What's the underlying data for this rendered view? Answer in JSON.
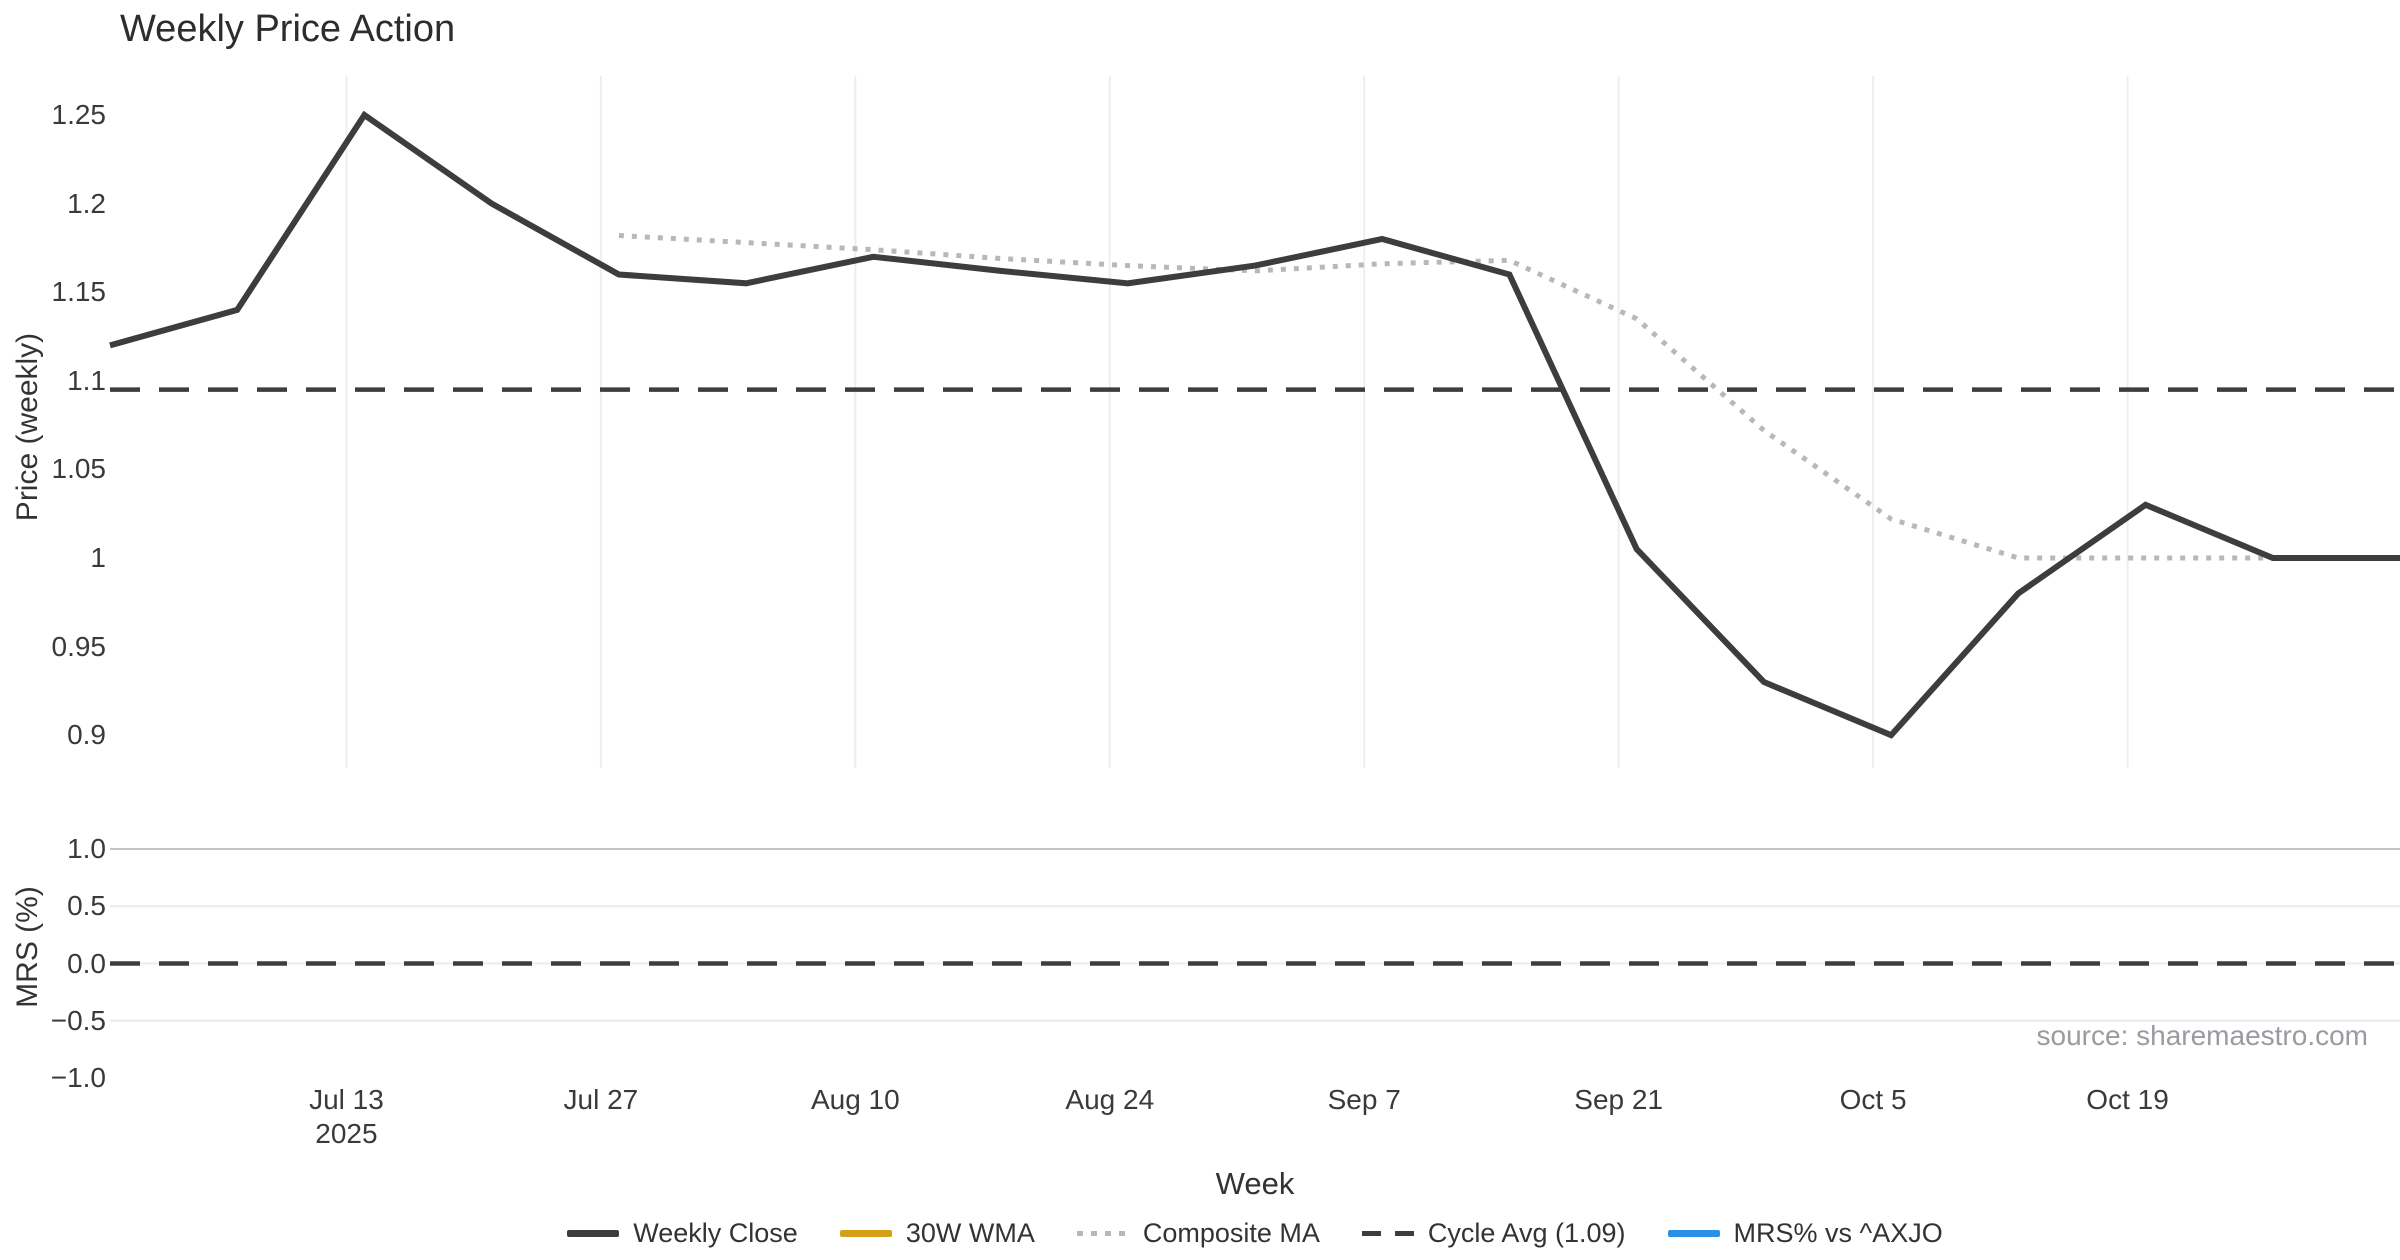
{
  "title": "Weekly Price Action",
  "source_note": "source: sharemaestro.com",
  "x_axis": {
    "label": "Week",
    "tick_labels": [
      "Jul 13",
      "Jul 27",
      "Aug 10",
      "Aug 24",
      "Sep 7",
      "Sep 21",
      "Oct 5",
      "Oct 19"
    ],
    "year_label": "2025"
  },
  "price_axis": {
    "label": "Price (weekly)",
    "tick_labels": [
      "1.25",
      "1.2",
      "1.15",
      "1.1",
      "1.05",
      "1",
      "0.95",
      "0.9"
    ]
  },
  "mrs_axis": {
    "label": "MRS (%)",
    "tick_labels": [
      "1.0",
      "0.5",
      "0.0",
      "−0.5",
      "−1.0"
    ]
  },
  "legend": [
    {
      "label": "Weekly Close",
      "color": "#3d3d3d",
      "style": "solid"
    },
    {
      "label": "30W WMA",
      "color": "#d4a017",
      "style": "solid"
    },
    {
      "label": "Composite MA",
      "color": "#b8b8b8",
      "style": "dotted"
    },
    {
      "label": "Cycle Avg (1.09)",
      "color": "#3d3d3d",
      "style": "dashed"
    },
    {
      "label": "MRS% vs ^AXJO",
      "color": "#2b8fe8",
      "style": "solid"
    }
  ],
  "chart_data": {
    "type": "line",
    "title": "Weekly Price Action",
    "xlabel": "Week",
    "x": [
      "Jun 29",
      "Jul 6",
      "Jul 13",
      "Jul 20",
      "Jul 27",
      "Aug 3",
      "Aug 10",
      "Aug 17",
      "Aug 24",
      "Aug 31",
      "Sep 7",
      "Sep 14",
      "Sep 21",
      "Sep 28",
      "Oct 5",
      "Oct 12",
      "Oct 19",
      "Oct 26",
      "Nov 2"
    ],
    "year": "2025",
    "x_tick_labels": [
      "Jul 13",
      "Jul 27",
      "Aug 10",
      "Aug 24",
      "Sep 7",
      "Sep 21",
      "Oct 5",
      "Oct 19"
    ],
    "x_tick_indices": [
      2,
      4,
      6,
      8,
      10,
      12,
      14,
      16
    ],
    "legend_position": "bottom-center",
    "panels": [
      {
        "ylabel": "Price (weekly)",
        "ylim": [
          0.88,
          1.27
        ],
        "yticks": [
          1.25,
          1.2,
          1.15,
          1.1,
          1.05,
          1.0,
          0.95,
          0.9
        ],
        "grid": "vertical-only",
        "series": [
          {
            "name": "Weekly Close",
            "style": "solid",
            "color": "#3d3d3d",
            "values": [
              1.12,
              1.14,
              1.25,
              1.2,
              1.16,
              1.155,
              1.17,
              1.162,
              1.155,
              1.165,
              1.18,
              1.16,
              1.005,
              0.93,
              0.9,
              0.98,
              1.03,
              1.0,
              1.0
            ]
          },
          {
            "name": "30W WMA",
            "style": "solid",
            "color": "#d4a017",
            "values": []
          },
          {
            "name": "Composite MA",
            "style": "dotted",
            "color": "#b8b8b8",
            "values": [
              null,
              null,
              null,
              null,
              1.182,
              1.178,
              1.174,
              1.169,
              1.165,
              1.162,
              1.166,
              1.168,
              1.135,
              1.072,
              1.022,
              1.0,
              1.0,
              1.0,
              1.0
            ]
          },
          {
            "name": "Cycle Avg (1.09)",
            "style": "dashed",
            "color": "#3d3d3d",
            "constant": 1.095
          }
        ]
      },
      {
        "ylabel": "MRS (%)",
        "ylim": [
          -1.15,
          1.15
        ],
        "yticks": [
          1.0,
          0.5,
          0.0,
          -0.5,
          -1.0
        ],
        "grid": "horizontal-only",
        "series": [
          {
            "name": "MRS% vs ^AXJO",
            "style": "solid",
            "color": "#2b8fe8",
            "values": []
          },
          {
            "name": "zero-line",
            "style": "dashed",
            "color": "#3d3d3d",
            "constant": 0.0
          }
        ]
      }
    ]
  }
}
